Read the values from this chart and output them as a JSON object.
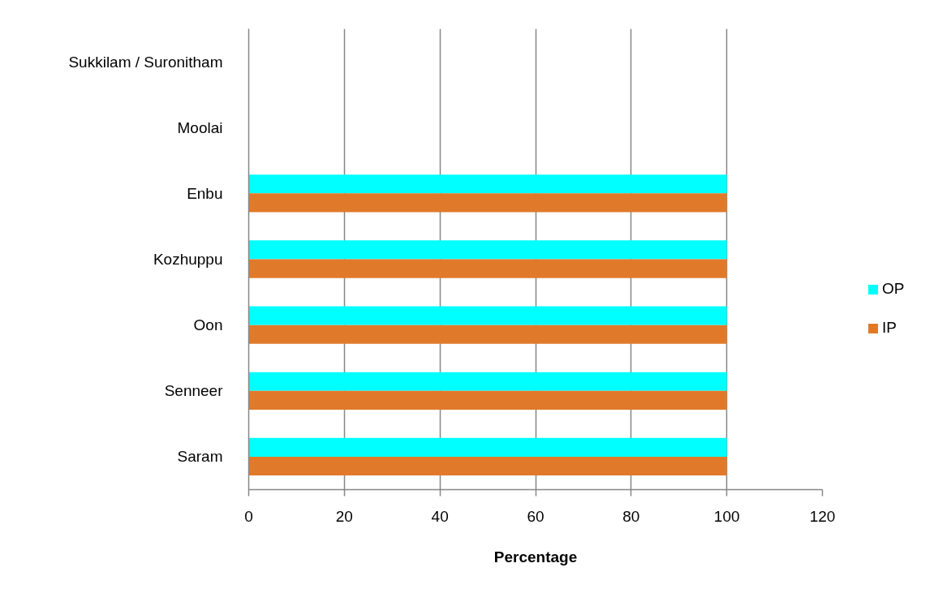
{
  "chart_data": {
    "type": "bar",
    "orientation": "horizontal",
    "categories": [
      "Sukkilam / Suronitham",
      "Moolai",
      "Enbu",
      "Kozhuppu",
      "Oon",
      "Senneer",
      "Saram"
    ],
    "series": [
      {
        "name": "OP",
        "color": "#00ffff",
        "values": [
          null,
          null,
          100,
          100,
          100,
          100,
          100
        ]
      },
      {
        "name": "IP",
        "color": "#e07a2a",
        "values": [
          null,
          null,
          100,
          100,
          100,
          100,
          100
        ]
      }
    ],
    "xlabel": "Percentage",
    "xlim": [
      0,
      120
    ],
    "xticks": [
      0,
      20,
      40,
      60,
      80,
      100,
      120
    ],
    "grid": "x",
    "legend": "right"
  }
}
